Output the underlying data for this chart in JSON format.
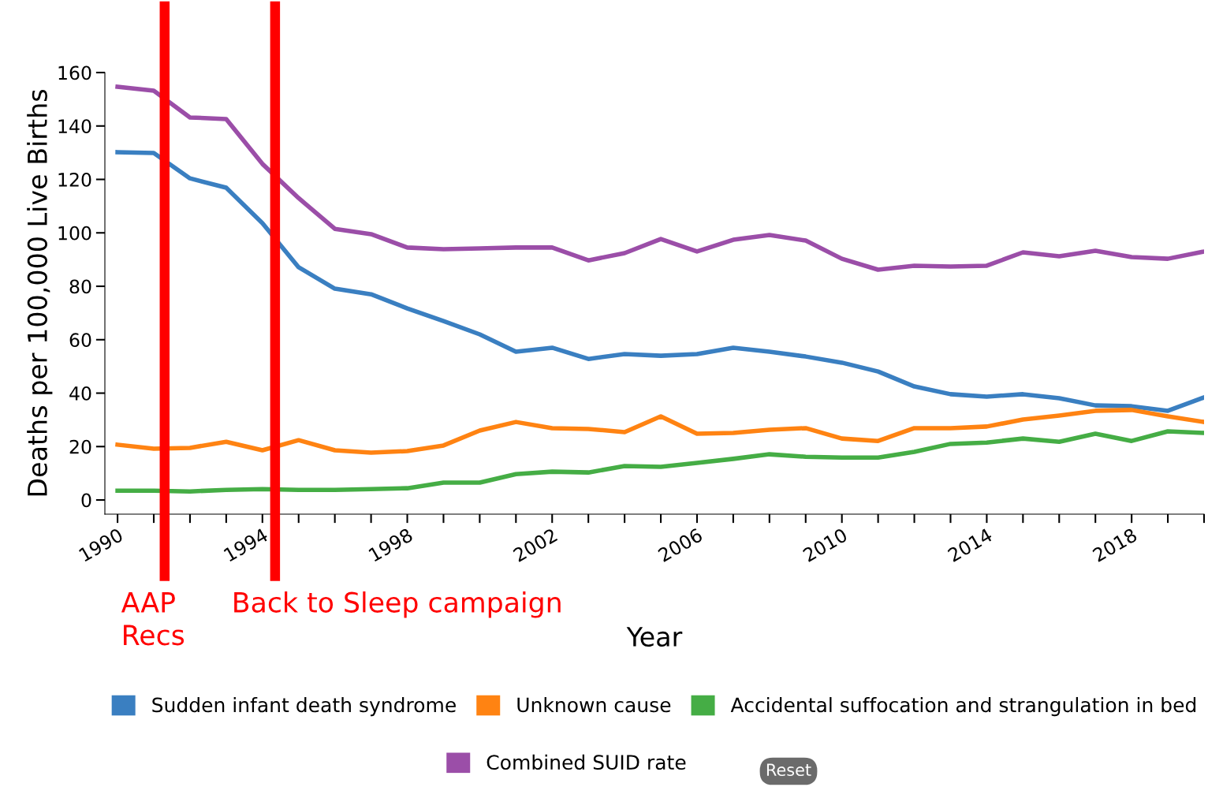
{
  "chart_data": {
    "type": "line",
    "xlabel": "Year",
    "ylabel": "Deaths per 100,000 Live Births",
    "x": [
      1990,
      1991,
      1992,
      1993,
      1994,
      1995,
      1996,
      1997,
      1998,
      1999,
      2000,
      2001,
      2002,
      2003,
      2004,
      2005,
      2006,
      2007,
      2008,
      2009,
      2010,
      2011,
      2012,
      2013,
      2014,
      2015,
      2016,
      2017,
      2018,
      2019,
      2020
    ],
    "series": [
      {
        "name": "Sudden infant death syndrome",
        "color": "#3a7fc1",
        "values": [
          130.2,
          129.9,
          120.4,
          116.9,
          103.6,
          87.1,
          79.1,
          77,
          71.7,
          67,
          62,
          55.5,
          57,
          52.8,
          54.6,
          54,
          54.6,
          57,
          55.5,
          53.7,
          51.4,
          48.1,
          42.5,
          39.6,
          38.7,
          39.6,
          38.1,
          35.4,
          35.1,
          33.4,
          38.4
        ]
      },
      {
        "name": "Unknown cause",
        "color": "#ff8312",
        "values": [
          20.7,
          19.2,
          19.5,
          21.8,
          18.6,
          22.4,
          18.6,
          17.7,
          18.3,
          20.4,
          26,
          29.2,
          26.9,
          26.6,
          25.4,
          31.3,
          24.8,
          25.1,
          26.3,
          26.9,
          23,
          22.1,
          26.9,
          26.9,
          27.5,
          30.1,
          31.6,
          33.4,
          33.7,
          31.3,
          29.2
        ]
      },
      {
        "name": "Accidental suffocation and strangulation in bed",
        "color": "#45ad45",
        "values": [
          3.5,
          3.5,
          3.2,
          3.8,
          4.1,
          3.8,
          3.8,
          4.1,
          4.4,
          6.5,
          6.5,
          9.7,
          10.6,
          10.3,
          12.7,
          12.4,
          13.9,
          15.4,
          17.1,
          16.2,
          15.9,
          15.9,
          18,
          21,
          21.5,
          23,
          21.8,
          24.8,
          22.1,
          25.7,
          25.1
        ]
      },
      {
        "name": "Combined SUID rate",
        "color": "#9b4ea8",
        "values": [
          154.7,
          153.2,
          143.2,
          142.6,
          125.8,
          113,
          101.5,
          99.5,
          94.5,
          93.9,
          94.2,
          94.5,
          94.5,
          89.7,
          92.4,
          97.7,
          93,
          97.4,
          99.2,
          97.1,
          90.3,
          86.2,
          87.7,
          87.4,
          87.7,
          92.7,
          91.2,
          93.3,
          90.9,
          90.3,
          93
        ]
      }
    ],
    "xlim": [
      1989.65,
      2020
    ],
    "xticks": [
      1990,
      {
        "value": 1991,
        "label": null
      },
      {
        "value": 1992,
        "label": null
      },
      {
        "value": 1993,
        "label": null
      },
      1994,
      {
        "value": 1995,
        "label": null
      },
      {
        "value": 1996,
        "label": null
      },
      {
        "value": 1997,
        "label": null
      },
      1998,
      {
        "value": 1999,
        "label": null
      },
      {
        "value": 2000,
        "label": null
      },
      {
        "value": 2001,
        "label": null
      },
      2002,
      {
        "value": 2003,
        "label": null
      },
      {
        "value": 2004,
        "label": null
      },
      {
        "value": 2005,
        "label": null
      },
      2006,
      {
        "value": 2007,
        "label": null
      },
      {
        "value": 2008,
        "label": null
      },
      {
        "value": 2009,
        "label": null
      },
      2010,
      {
        "value": 2011,
        "label": null
      },
      {
        "value": 2012,
        "label": null
      },
      {
        "value": 2013,
        "label": null
      },
      2014,
      {
        "value": 2015,
        "label": null
      },
      {
        "value": 2016,
        "label": null
      },
      {
        "value": 2017,
        "label": null
      },
      2018,
      {
        "value": 2019,
        "label": null
      },
      {
        "value": 2020,
        "label": null
      }
    ],
    "ylim": [
      -5.3,
      160
    ],
    "yticks": [
      0,
      20,
      40,
      60,
      80,
      100,
      120,
      140,
      160
    ],
    "ref_lines": [
      {
        "axis": "x",
        "value": 1991.3,
        "label": "AAP\nRecs",
        "color": "#ff0000"
      },
      {
        "axis": "x",
        "value": 1994.35,
        "label": "Back to Sleep campaign",
        "color": "#ff0000"
      }
    ],
    "annotations": [
      "Reset"
    ],
    "legend": "bottom",
    "grid": false,
    "marker": "none",
    "line_style": "solid"
  }
}
